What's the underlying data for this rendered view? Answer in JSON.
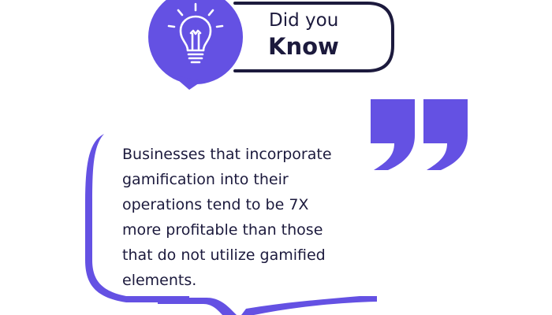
{
  "header": {
    "title_line1": "Did you",
    "title_line2": "Know"
  },
  "quote": {
    "lines": [
      "Businesses that incorporate",
      "gamification into their",
      "operations tend to be 7X",
      "more profitable than those",
      "that do not utilize gamified",
      "elements."
    ]
  },
  "icons": {
    "header_icon": "lightbulb-icon",
    "quote_icon": "quotation-mark-icon"
  },
  "colors": {
    "accent": "#6451e3",
    "text": "#1c1a3d",
    "background": "#ffffff"
  }
}
